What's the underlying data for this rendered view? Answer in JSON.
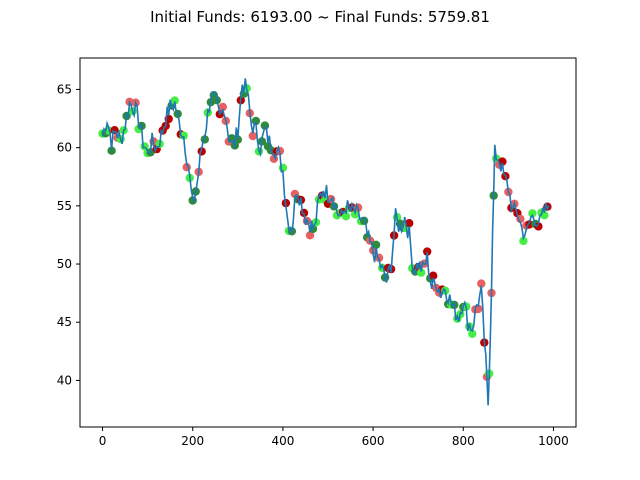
{
  "chart_data": {
    "type": "line",
    "title": "Initial Funds: 6193.00 ~ Final Funds: 5759.81",
    "xlabel": "",
    "ylabel": "",
    "xlim": [
      -50,
      1050
    ],
    "ylim": [
      36,
      67.7
    ],
    "x_ticks": [
      0,
      200,
      400,
      600,
      800,
      1000
    ],
    "y_ticks": [
      40,
      45,
      50,
      55,
      60,
      65
    ],
    "grid": false,
    "legend": "none",
    "line_color": "#1f77b4",
    "marker_colors": {
      "buy": "#44ee44",
      "buy_dark": "#2e8b3a",
      "sell": "#e86060",
      "sell_dark": "#bb0000"
    },
    "series": [
      {
        "x": [
          0,
          10,
          20,
          30,
          40,
          50,
          60,
          70,
          80,
          90,
          100,
          110,
          120,
          130,
          140,
          150,
          160,
          170,
          180,
          190,
          200,
          210,
          220,
          230,
          240,
          250,
          260,
          270,
          280,
          290,
          300,
          310,
          320,
          330,
          340,
          350,
          360,
          370,
          380,
          390,
          400,
          410,
          420,
          430,
          440,
          450,
          460,
          470,
          480,
          490,
          500,
          510,
          520,
          530,
          540,
          550,
          560,
          570,
          580,
          590,
          600,
          610,
          620,
          630,
          640,
          650,
          660,
          670,
          680,
          690,
          700,
          710,
          720,
          730,
          740,
          750,
          760,
          770,
          780,
          790,
          800,
          810,
          820,
          830,
          840,
          850,
          855,
          860,
          865,
          870,
          880,
          890,
          900,
          910,
          920,
          930,
          940,
          950,
          960,
          970,
          980,
          990
        ],
        "y": [
          61.0,
          62.5,
          60.5,
          61.5,
          60.5,
          62.0,
          63.8,
          63.5,
          62.5,
          60.5,
          59.5,
          60.5,
          60.0,
          61.0,
          62.5,
          63.5,
          63.8,
          62.0,
          61.0,
          58.5,
          55.0,
          57.0,
          60.0,
          62.0,
          64.5,
          64.0,
          62.5,
          63.5,
          61.0,
          60.0,
          61.5,
          65.5,
          65.0,
          62.0,
          61.5,
          60.0,
          61.5,
          60.5,
          60.0,
          59.5,
          58.0,
          54.0,
          53.0,
          56.5,
          55.5,
          54.0,
          53.5,
          53.0,
          55.5,
          56.5,
          56.0,
          56.0,
          54.5,
          54.0,
          55.0,
          54.5,
          54.5,
          54.0,
          53.5,
          52.0,
          51.0,
          50.5,
          49.5,
          48.5,
          50.0,
          54.0,
          53.0,
          54.0,
          52.5,
          49.5,
          50.0,
          49.5,
          50.5,
          48.0,
          48.5,
          47.5,
          48.0,
          47.0,
          46.0,
          45.5,
          47.0,
          45.0,
          44.5,
          46.5,
          47.5,
          41.5,
          38.0,
          44.0,
          52.5,
          59.5,
          59.0,
          57.5,
          56.5,
          54.5,
          54.5,
          53.0,
          52.5,
          54.0,
          54.0,
          53.5,
          54.5,
          55.0
        ]
      }
    ]
  }
}
